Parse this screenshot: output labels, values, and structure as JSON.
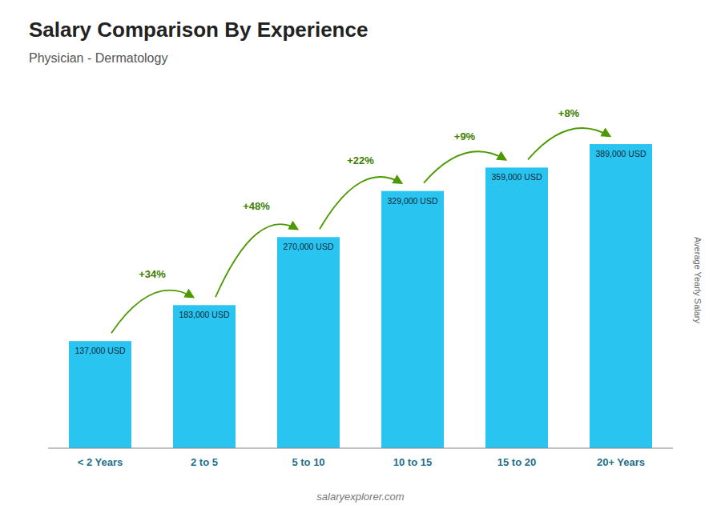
{
  "chart_data": {
    "type": "bar",
    "title": "Salary Comparison By Experience",
    "subtitle": "Physician - Dermatology",
    "categories": [
      "< 2 Years",
      "2 to 5",
      "5 to 10",
      "10 to 15",
      "15 to 20",
      "20+ Years"
    ],
    "values": [
      137000,
      183000,
      270000,
      329000,
      359000,
      389000
    ],
    "value_labels": [
      "137,000 USD",
      "183,000 USD",
      "270,000 USD",
      "329,000 USD",
      "359,000 USD",
      "389,000 USD"
    ],
    "data_labels": true,
    "annotations": [
      "+34%",
      "+48%",
      "+22%",
      "+9%",
      "+8%"
    ],
    "y_label": "Average Yearly Salary",
    "footer": "salaryexplorer.com",
    "color": "#29C4F0",
    "ylim": [
      0,
      430000
    ],
    "tick_labels": "x",
    "grid": false
  }
}
